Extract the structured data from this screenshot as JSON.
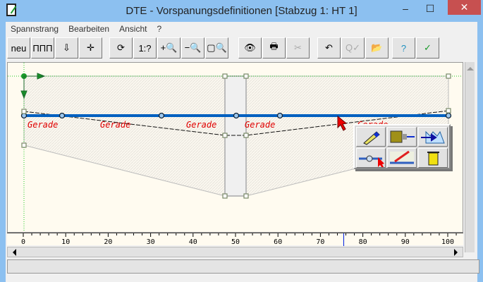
{
  "window": {
    "title": "DTE - Vorspanungsdefinitionen  [Stabzug 1: HT 1]",
    "minimize": "–",
    "maximize": "☐",
    "close": "✕"
  },
  "menu": [
    "Spannstrang",
    "Bearbeiten",
    "Ansicht",
    "?"
  ],
  "toolbar": [
    {
      "name": "new-tendon",
      "label": "neu",
      "enabled": true
    },
    {
      "name": "tendon-group",
      "label": "ΠΠΠ",
      "enabled": true
    },
    {
      "name": "sag-down",
      "label": "⇩",
      "enabled": true
    },
    {
      "name": "axis-cross",
      "label": "✛",
      "enabled": true
    },
    {
      "name": "refresh",
      "label": "⟳",
      "enabled": true
    },
    {
      "name": "scale",
      "label": "1:?",
      "enabled": true
    },
    {
      "name": "zoom-in",
      "label": "+🔍",
      "enabled": true
    },
    {
      "name": "zoom-out",
      "label": "−🔍",
      "enabled": true
    },
    {
      "name": "zoom-window",
      "label": "▢🔍",
      "enabled": true
    },
    {
      "name": "view",
      "label": "👁",
      "enabled": true
    },
    {
      "name": "print",
      "label": "🖶",
      "enabled": true
    },
    {
      "name": "export",
      "label": "✂",
      "enabled": false
    },
    {
      "name": "undo",
      "label": "↶",
      "enabled": true
    },
    {
      "name": "check-zoom",
      "label": "Q✓",
      "enabled": false
    },
    {
      "name": "open-folder",
      "label": "📂",
      "enabled": true
    },
    {
      "name": "help",
      "label": "?",
      "enabled": true
    },
    {
      "name": "ok",
      "label": "✓",
      "enabled": true
    }
  ],
  "canvas": {
    "segment_labels": [
      "Gerade",
      "Gerade",
      "Gerade",
      "Gerade",
      "Gerade"
    ],
    "tendon_color": "#0060c0",
    "label_color": "#e00000",
    "axis_color": "#1a9a2a"
  },
  "palette": [
    "edit-pen",
    "anchor",
    "distribution",
    "support-point",
    "measure",
    "delete"
  ],
  "ruler": {
    "ticks": [
      "0",
      "10",
      "20",
      "30",
      "40",
      "50",
      "60",
      "70",
      "80",
      "90",
      "100"
    ],
    "cursor": 75.5
  }
}
